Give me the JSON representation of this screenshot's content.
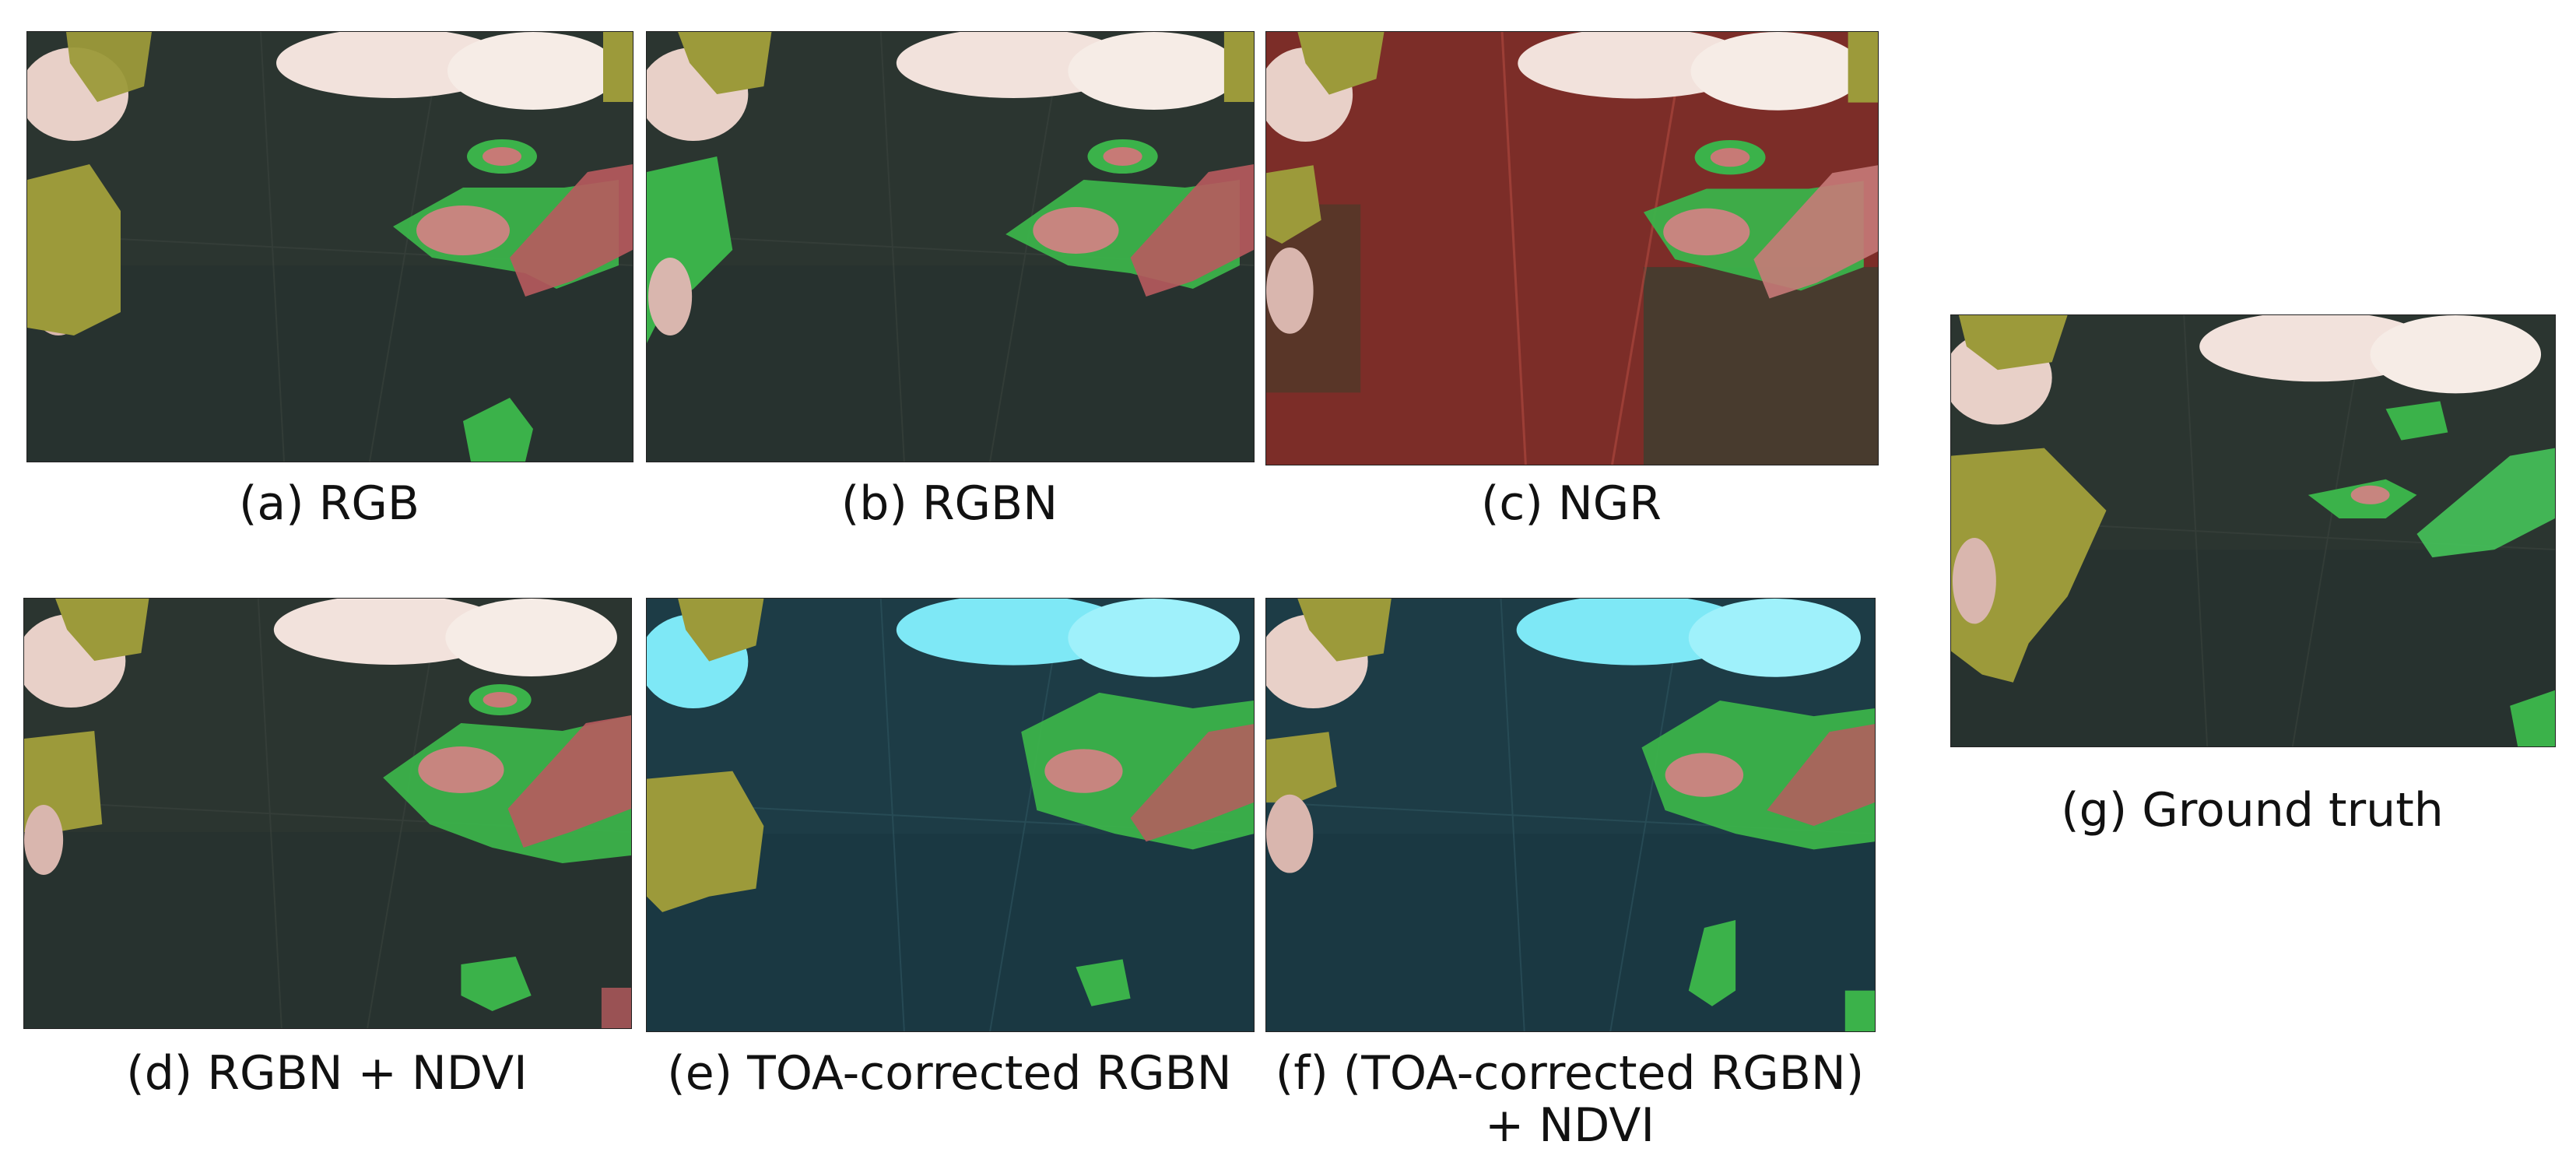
{
  "figure": {
    "panels": [
      {
        "id": "a",
        "caption": "(a) RGB",
        "style": "rgb"
      },
      {
        "id": "b",
        "caption": "(b) RGBN",
        "style": "rgbn"
      },
      {
        "id": "c",
        "caption": "(c) NGR",
        "style": "ngr"
      },
      {
        "id": "d",
        "caption": "(d) RGBN + NDVI",
        "style": "rgbn_ndvi"
      },
      {
        "id": "e",
        "caption": "(e) TOA-corrected RGBN",
        "style": "toa"
      },
      {
        "id": "f",
        "caption_line1": "(f) (TOA-corrected RGBN)",
        "caption_line2": "+ NDVI",
        "style": "toa_ndvi"
      },
      {
        "id": "g",
        "caption": "(g) Ground truth",
        "style": "gt"
      }
    ],
    "colors": {
      "background_dark": "#2b3530",
      "background_ngr": "#6e2a26",
      "background_toa": "#1d3c46",
      "cloud": "#f2e2dc",
      "cloud_toa": "#7ee8f6",
      "class_yellow": "#9c9a3a",
      "class_green": "#3bb24a",
      "class_red": "#b85a5e"
    }
  }
}
